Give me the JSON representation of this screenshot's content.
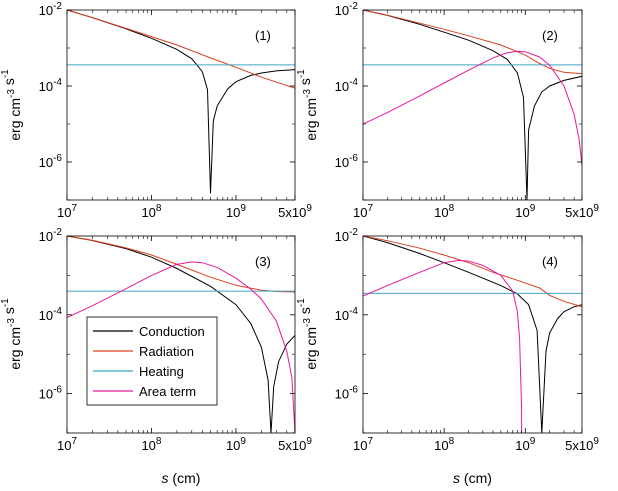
{
  "colors": {
    "conduction": "#000000",
    "radiation": "#d9411e",
    "heating": "#3fa7c5",
    "area_term": "#e8199e"
  },
  "chart_data": [
    {
      "type": "line",
      "panel_label": "(1)",
      "xlabel": "",
      "ylabel": "erg cm-3 s-1",
      "x_scale": "log",
      "y_scale": "log",
      "xlim": [
        10000000,
        5000000000
      ],
      "ylim": [
        1e-07,
        0.01
      ],
      "x_ticks": [
        "10^7",
        "10^8",
        "10^9",
        "5x10^9"
      ],
      "y_ticks": [
        "10^-2",
        "10^-4",
        "10^-6"
      ],
      "series": [
        {
          "name": "Conduction",
          "color_key": "conduction",
          "x": [
            10000000.0,
            20000000.0,
            50000000.0,
            100000000.0,
            200000000.0,
            300000000.0,
            400000000.0,
            460000000.0,
            500000000.0,
            540000000.0,
            600000000.0,
            800000000.0,
            1000000000.0,
            1500000000.0,
            2000000000.0,
            3000000000.0,
            5000000000.0
          ],
          "y": [
            0.01,
            0.0063,
            0.0032,
            0.0018,
            0.00092,
            0.00052,
            0.00024,
            8e-05,
            1.5e-07,
            1.2e-05,
            3e-05,
            8.5e-05,
            0.00013,
            0.00019,
            0.00022,
            0.00025,
            0.00027
          ]
        },
        {
          "name": "Radiation",
          "color_key": "radiation",
          "x": [
            10000000.0,
            20000000.0,
            50000000.0,
            100000000.0,
            200000000.0,
            500000000.0,
            1000000000.0,
            2000000000.0,
            5000000000.0
          ],
          "y": [
            0.01,
            0.0063,
            0.0033,
            0.002,
            0.0012,
            0.00055,
            0.00031,
            0.00017,
            8.8e-05
          ]
        },
        {
          "name": "Heating",
          "color_key": "heating",
          "x": [
            10000000.0,
            5000000000.0
          ],
          "y": [
            0.00036,
            0.00036
          ]
        }
      ]
    },
    {
      "type": "line",
      "panel_label": "(2)",
      "xlabel": "",
      "ylabel": "erg cm-3 s-1",
      "x_scale": "log",
      "y_scale": "log",
      "xlim": [
        10000000,
        5000000000
      ],
      "ylim": [
        1e-07,
        0.01
      ],
      "x_ticks": [
        "10^7",
        "10^8",
        "10^9",
        "5x10^9"
      ],
      "y_ticks": [
        "10^-2",
        "10^-4",
        "10^-6"
      ],
      "series": [
        {
          "name": "Conduction",
          "color_key": "conduction",
          "x": [
            10000000.0,
            20000000.0,
            50000000.0,
            100000000.0,
            200000000.0,
            400000000.0,
            600000000.0,
            800000000.0,
            950000000.0,
            1050000000.0,
            1100000000.0,
            1300000000.0,
            1600000000.0,
            2000000000.0,
            3000000000.0,
            5000000000.0
          ],
          "y": [
            0.01,
            0.0072,
            0.0042,
            0.0026,
            0.0016,
            0.00085,
            0.0005,
            0.00022,
            5e-05,
            1e-07,
            7e-06,
            3e-05,
            7e-05,
            0.0001,
            0.00014,
            0.00018
          ]
        },
        {
          "name": "Radiation",
          "color_key": "radiation",
          "x": [
            10000000.0,
            20000000.0,
            50000000.0,
            100000000.0,
            200000000.0,
            500000000.0,
            1000000000.0,
            1500000000.0,
            2000000000.0,
            3000000000.0,
            5000000000.0
          ],
          "y": [
            0.01,
            0.0073,
            0.0045,
            0.0031,
            0.0021,
            0.0012,
            0.00065,
            0.00039,
            0.00029,
            0.00023,
            0.00021
          ]
        },
        {
          "name": "Heating",
          "color_key": "heating",
          "x": [
            10000000.0,
            5000000000.0
          ],
          "y": [
            0.00036,
            0.00036
          ]
        },
        {
          "name": "Area term",
          "color_key": "area_term",
          "x": [
            10000000.0,
            20000000.0,
            50000000.0,
            100000000.0,
            200000000.0,
            400000000.0,
            600000000.0,
            800000000.0,
            1000000000.0,
            1500000000.0,
            2000000000.0,
            3000000000.0,
            4000000000.0,
            4600000000.0,
            5000000000.0
          ],
          "y": [
            1e-05,
            2e-05,
            5.5e-05,
            0.00012,
            0.00026,
            0.00055,
            0.00075,
            0.00082,
            0.0008,
            0.00058,
            0.00035,
            0.0001,
            1.8e-05,
            4e-06,
            8e-07
          ]
        }
      ]
    },
    {
      "type": "line",
      "panel_label": "(3)",
      "xlabel": "s (cm)",
      "ylabel": "erg cm-3 s-1",
      "x_scale": "log",
      "y_scale": "log",
      "xlim": [
        10000000,
        5000000000
      ],
      "ylim": [
        1e-07,
        0.01
      ],
      "x_ticks": [
        "10^7",
        "10^8",
        "10^9",
        "5x10^9"
      ],
      "y_ticks": [
        "10^-2",
        "10^-4",
        "10^-6"
      ],
      "legend": {
        "position": "lower-left",
        "entries": [
          "Conduction",
          "Radiation",
          "Heating",
          "Area term"
        ]
      },
      "series": [
        {
          "name": "Conduction",
          "color_key": "conduction",
          "x": [
            10000000.0,
            20000000.0,
            50000000.0,
            100000000.0,
            200000000.0,
            500000000.0,
            1000000000.0,
            1500000000.0,
            2000000000.0,
            2400000000.0,
            2600000000.0,
            2800000000.0,
            3200000000.0,
            4000000000.0,
            5000000000.0
          ],
          "y": [
            0.01,
            0.0077,
            0.0048,
            0.0029,
            0.0015,
            0.00053,
            0.00018,
            6e-05,
            1.5e-05,
            2.2e-06,
            1e-07,
            1.5e-06,
            6.5e-06,
            1.8e-05,
            3e-05
          ]
        },
        {
          "name": "Radiation",
          "color_key": "radiation",
          "x": [
            10000000.0,
            20000000.0,
            50000000.0,
            100000000.0,
            200000000.0,
            500000000.0,
            1000000000.0,
            2000000000.0,
            3000000000.0,
            5000000000.0
          ],
          "y": [
            0.01,
            0.0078,
            0.005,
            0.0033,
            0.0019,
            0.0009,
            0.00056,
            0.00042,
            0.00039,
            0.00038
          ]
        },
        {
          "name": "Heating",
          "color_key": "heating",
          "x": [
            10000000.0,
            5000000000.0
          ],
          "y": [
            0.0004,
            0.0004
          ]
        },
        {
          "name": "Area term",
          "color_key": "area_term",
          "x": [
            10000000.0,
            20000000.0,
            50000000.0,
            100000000.0,
            200000000.0,
            300000000.0,
            400000000.0,
            600000000.0,
            1000000000.0,
            1500000000.0,
            2000000000.0,
            3000000000.0,
            4000000000.0,
            4600000000.0,
            5000000000.0
          ],
          "y": [
            8.5e-05,
            0.00017,
            0.00046,
            0.001,
            0.0019,
            0.0022,
            0.0021,
            0.0016,
            0.00085,
            0.00045,
            0.00025,
            7e-05,
            1.2e-05,
            2.5e-06,
            1e-07
          ]
        }
      ]
    },
    {
      "type": "line",
      "panel_label": "(4)",
      "xlabel": "s (cm)",
      "ylabel": "erg cm-3 s-1",
      "x_scale": "log",
      "y_scale": "log",
      "xlim": [
        10000000,
        5000000000
      ],
      "ylim": [
        1e-07,
        0.01
      ],
      "x_ticks": [
        "10^7",
        "10^8",
        "10^9",
        "5x10^9"
      ],
      "y_ticks": [
        "10^-2",
        "10^-4",
        "10^-6"
      ],
      "series": [
        {
          "name": "Conduction",
          "color_key": "conduction",
          "x": [
            10000000.0,
            20000000.0,
            50000000.0,
            100000000.0,
            200000000.0,
            500000000.0,
            800000000.0,
            1100000000.0,
            1400000000.0,
            1600000000.0,
            1800000000.0,
            2000000000.0,
            2500000000.0,
            3000000000.0,
            4000000000.0,
            5000000000.0
          ],
          "y": [
            0.01,
            0.0068,
            0.0036,
            0.0021,
            0.0012,
            0.00055,
            0.00034,
            0.00018,
            4e-05,
            1e-07,
            1.2e-05,
            3.5e-05,
            8e-05,
            0.00012,
            0.00016,
            0.00018
          ]
        },
        {
          "name": "Radiation",
          "color_key": "radiation",
          "x": [
            10000000.0,
            20000000.0,
            50000000.0,
            100000000.0,
            200000000.0,
            400000000.0,
            800000000.0,
            1500000000.0,
            2000000000.0,
            3000000000.0,
            5000000000.0
          ],
          "y": [
            0.01,
            0.0076,
            0.0049,
            0.0033,
            0.0021,
            0.0012,
            0.00075,
            0.00048,
            0.00031,
            0.00022,
            0.00016
          ]
        },
        {
          "name": "Heating",
          "color_key": "heating",
          "x": [
            10000000.0,
            5000000000.0
          ],
          "y": [
            0.00035,
            0.00035
          ]
        },
        {
          "name": "Area term",
          "color_key": "area_term",
          "x": [
            10000000.0,
            20000000.0,
            50000000.0,
            100000000.0,
            150000000.0,
            200000000.0,
            300000000.0,
            500000000.0,
            700000000.0,
            800000000.0,
            850000000.0,
            880000000.0,
            900000000.0,
            900000000.0
          ],
          "y": [
            0.0003,
            0.00055,
            0.0012,
            0.0021,
            0.0024,
            0.0023,
            0.0018,
            0.001,
            0.0004,
            0.00012,
            2.5e-05,
            2e-06,
            4e-07,
            1e-07
          ]
        }
      ]
    }
  ]
}
